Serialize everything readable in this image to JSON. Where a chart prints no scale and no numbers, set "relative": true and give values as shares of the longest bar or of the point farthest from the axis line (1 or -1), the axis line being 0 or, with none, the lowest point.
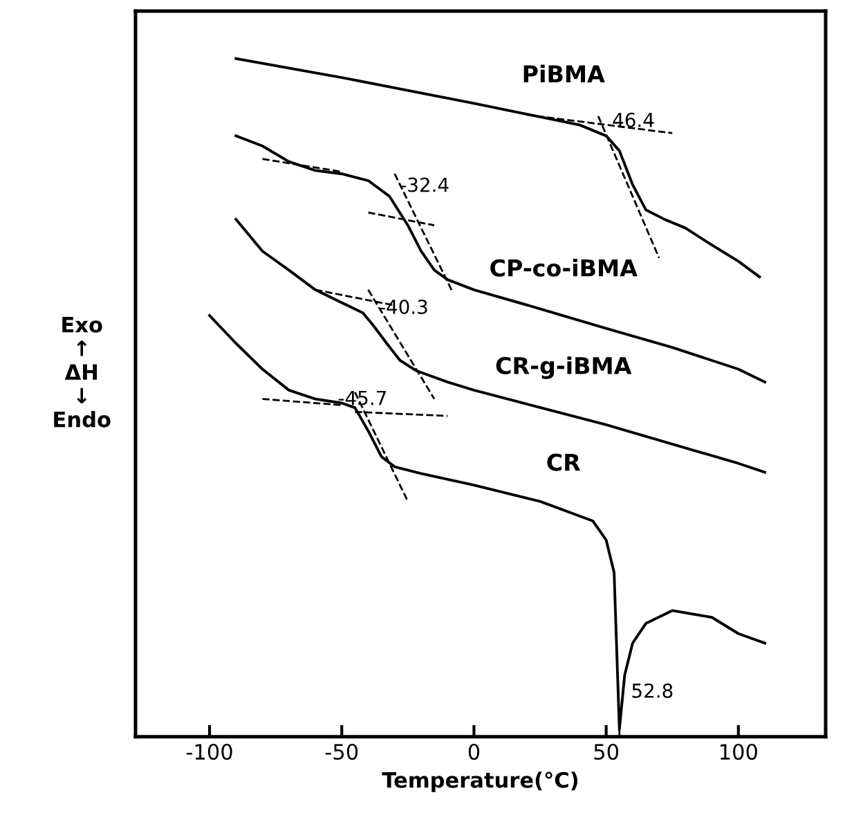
{
  "chart_data": {
    "type": "line",
    "relative": true,
    "xlabel": "Temperature(°C)",
    "ylabel": "Exo\n↑\nΔH\n↓\nEndo",
    "xlim": [
      -128,
      133
    ],
    "xticks": [
      -100,
      -50,
      0,
      50,
      100
    ],
    "grid": false,
    "legend": false,
    "marker": "none",
    "series": [
      {
        "name": "PiBMA",
        "color": "#000000",
        "x": [
          -90,
          -50,
          0,
          40,
          50,
          55,
          60,
          65,
          72,
          80,
          90,
          100,
          108
        ],
        "values": [
          1.0,
          0.972,
          0.934,
          0.902,
          0.886,
          0.864,
          0.814,
          0.777,
          0.763,
          0.75,
          0.725,
          0.701,
          0.678
        ]
      },
      {
        "name": "CP-co-iBMA",
        "color": "#000000",
        "x": [
          -90,
          -80,
          -70,
          -60,
          -50,
          -40,
          -32,
          -25,
          -20,
          -15,
          -10,
          0,
          25,
          50,
          75,
          100,
          110
        ],
        "values": [
          0.886,
          0.871,
          0.848,
          0.835,
          0.83,
          0.82,
          0.797,
          0.754,
          0.716,
          0.688,
          0.674,
          0.659,
          0.631,
          0.602,
          0.574,
          0.542,
          0.523
        ]
      },
      {
        "name": "CR-g-iBMA",
        "color": "#000000",
        "x": [
          -90,
          -80,
          -70,
          -60,
          -50,
          -42,
          -38,
          -33,
          -28,
          -22,
          -10,
          0,
          50,
          100,
          110
        ],
        "values": [
          0.763,
          0.716,
          0.688,
          0.659,
          0.64,
          0.625,
          0.606,
          0.58,
          0.555,
          0.54,
          0.523,
          0.511,
          0.46,
          0.403,
          0.39
        ]
      },
      {
        "name": "CR",
        "color": "#000000",
        "x": [
          -100,
          -90,
          -80,
          -70,
          -60,
          -50,
          -45,
          -40,
          -35,
          -30,
          -20,
          0,
          25,
          45,
          50,
          53,
          55,
          57,
          60,
          65,
          75,
          90,
          100,
          110
        ],
        "values": [
          0.621,
          0.58,
          0.542,
          0.511,
          0.498,
          0.492,
          0.485,
          0.451,
          0.413,
          0.398,
          0.388,
          0.371,
          0.347,
          0.318,
          0.29,
          0.242,
          0.011,
          0.091,
          0.138,
          0.167,
          0.186,
          0.176,
          0.152,
          0.138
        ]
      },
      {
        "color": "#000000",
        "line_style": "dashed",
        "x": [
          20,
          75
        ],
        "values": [
          0.917,
          0.89
        ]
      },
      {
        "color": "#000000",
        "line_style": "dashed",
        "x": [
          47,
          70
        ],
        "values": [
          0.915,
          0.706
        ]
      },
      {
        "color": "#000000",
        "line_style": "dashed",
        "x": [
          -80,
          -50
        ],
        "values": [
          0.852,
          0.833
        ]
      },
      {
        "color": "#000000",
        "line_style": "dashed",
        "x": [
          -40,
          -15
        ],
        "values": [
          0.773,
          0.754
        ]
      },
      {
        "color": "#000000",
        "line_style": "dashed",
        "x": [
          -30,
          -8
        ],
        "values": [
          0.83,
          0.655
        ]
      },
      {
        "color": "#000000",
        "line_style": "dashed",
        "x": [
          -60,
          -30
        ],
        "values": [
          0.659,
          0.636
        ]
      },
      {
        "color": "#000000",
        "line_style": "dashed",
        "x": [
          -40,
          -15
        ],
        "values": [
          0.659,
          0.498
        ]
      },
      {
        "color": "#000000",
        "line_style": "dashed",
        "x": [
          -80,
          -50
        ],
        "values": [
          0.498,
          0.489
        ]
      },
      {
        "color": "#000000",
        "line_style": "dashed",
        "x": [
          -45,
          -10
        ],
        "values": [
          0.479,
          0.473
        ]
      },
      {
        "color": "#000000",
        "line_style": "dashed",
        "x": [
          -45,
          -25
        ],
        "values": [
          0.508,
          0.347
        ]
      },
      {
        "color": "#000000",
        "line_style": "dashed",
        "x": [
          55,
          55
        ],
        "values": [
          0.04,
          0.0
        ]
      }
    ],
    "annotations": [
      {
        "text": "46.4",
        "x": 46.4,
        "y": 0.89
      },
      {
        "text": "-32.4",
        "x": -32.4,
        "y": 0.8
      },
      {
        "text": "-40.3",
        "x": -40.3,
        "y": 0.62
      },
      {
        "text": "-45.7",
        "x": -45.7,
        "y": 0.48
      },
      {
        "text": "52.8",
        "x": 55,
        "y": 0.02
      }
    ]
  }
}
